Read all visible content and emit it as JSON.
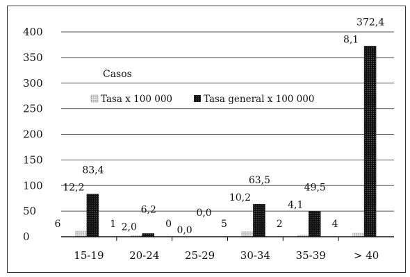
{
  "chart_data": {
    "type": "bar",
    "categories": [
      "15-19",
      "20-24",
      "25-29",
      "30-34",
      "35-39",
      "> 40"
    ],
    "series": [
      {
        "name": "Tasa x 100 000",
        "values": [
          12.2,
          2.0,
          0.0,
          10.2,
          4.1,
          8.1
        ],
        "color": "#c9c9c9",
        "pattern": "light-stipple"
      },
      {
        "name": "Tasa general x 100 000",
        "values": [
          83.4,
          6.2,
          0.0,
          63.5,
          49.5,
          372.4
        ],
        "color": "#111111",
        "pattern": "dark-stipple"
      }
    ],
    "casos": [
      6,
      1,
      0,
      5,
      2,
      4
    ],
    "casos_label": "Casos",
    "value_labels": {
      "casos": [
        "6",
        "1",
        "0",
        "5",
        "2",
        "4"
      ],
      "tasa": [
        "12,2",
        "2,0",
        "0,0",
        "10,2",
        "4,1",
        "8,1"
      ],
      "tasa_general": [
        "83,4",
        "6,2",
        "0,0",
        "63,5",
        "49,5",
        "372,4"
      ]
    },
    "yticks": [
      "0",
      "50",
      "100",
      "150",
      "200",
      "250",
      "300",
      "350",
      "400"
    ],
    "ylim": [
      0,
      400
    ],
    "grid": true,
    "legend_position": "top-left"
  }
}
